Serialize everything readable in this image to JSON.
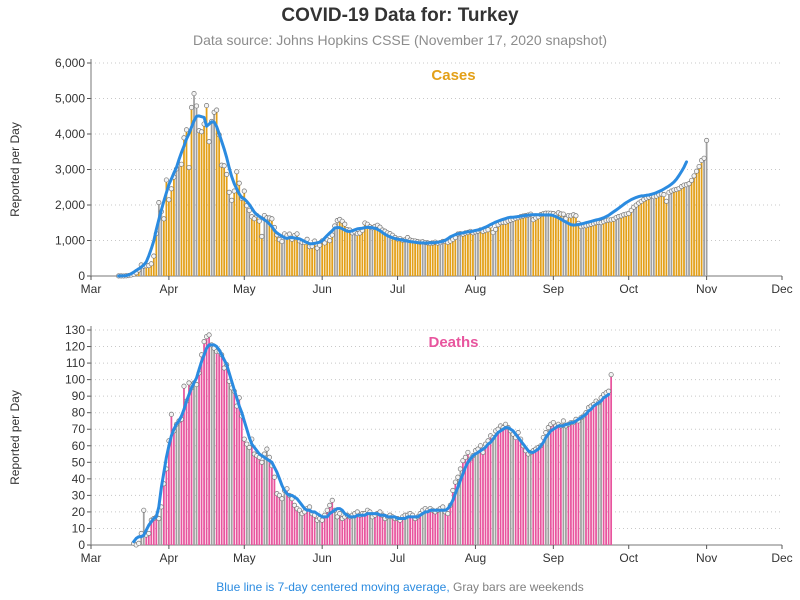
{
  "header": {
    "title": "COVID-19 Data for: Turkey",
    "subtitle": "Data source: Johns Hopkins CSSE (November 17, 2020 snapshot)"
  },
  "footnote": {
    "blue_text": "Blue line is 7-day centered moving average,",
    "gray_text": "Gray bars are weekends"
  },
  "colors": {
    "cases": "#e3a018",
    "deaths": "#e8559e",
    "moving_average": "#2b8be0",
    "weekend": "#a0a0a0",
    "grid": "#c8c8c8"
  },
  "chart_data": [
    {
      "type": "bar",
      "title": "Cases",
      "ylabel": "Reported per Day",
      "xlabel": "",
      "ylim": [
        0,
        6000
      ],
      "yticks": [
        "0",
        "1,000",
        "2,000",
        "3,000",
        "4,000",
        "5,000",
        "6,000"
      ],
      "x_ticks": [
        "Mar",
        "Apr",
        "May",
        "Jun",
        "Jul",
        "Aug",
        "Sep",
        "Oct",
        "Nov",
        "Dec"
      ],
      "x_start": "2020-03-01",
      "grid": true,
      "series": [
        {
          "name": "Cases",
          "x_first": "2020-03-12",
          "values": [
            1,
            1,
            0,
            4,
            12,
            29,
            51,
            93,
            168,
            311,
            277,
            289,
            293,
            343,
            561,
            1196,
            2069,
            1815,
            1610,
            2704,
            2148,
            2456,
            2786,
            3013,
            3135,
            3148,
            3892,
            4117,
            3056,
            4747,
            5138,
            4789,
            4093,
            4062,
            4281,
            4801,
            3783,
            4353,
            4611,
            4674,
            3977,
            3122,
            3104,
            2861,
            2357,
            2131,
            2392,
            2936,
            2615,
            2188,
            2392,
            1983,
            1848,
            1670,
            1614,
            1704,
            1546,
            1114,
            1704,
            1639,
            1635,
            1610,
            1368,
            1158,
            1022,
            972,
            1186,
            1141,
            1182,
            1035,
            1141,
            1186,
            987,
            952,
            948,
            1034,
            827,
            839,
            983,
            786,
            867,
            989,
            930,
            1025,
            995,
            1153,
            1410,
            1562,
            1592,
            1542,
            1459,
            1304,
            1293,
            1214,
            1248,
            1195,
            1212,
            1285,
            1492,
            1458,
            1386,
            1356,
            1396,
            1429,
            1374,
            1293,
            1263,
            1214,
            1192,
            1148,
            1086,
            1041,
            1053,
            1008,
            1016,
            1083,
            1012,
            992,
            985,
            966,
            953,
            963,
            944,
            932,
            919,
            928,
            954,
            926,
            940,
            973,
            976,
            948,
            983,
            1032,
            1083,
            1182,
            1192,
            1178,
            1212,
            1226,
            1256,
            1217,
            1243,
            1263,
            1298,
            1256,
            1285,
            1303,
            1412,
            1226,
            1312,
            1443,
            1502,
            1512,
            1517,
            1549,
            1573,
            1596,
            1627,
            1642,
            1671,
            1688,
            1703,
            1716,
            1742,
            1585,
            1634,
            1670,
            1726,
            1751,
            1768,
            1771,
            1767,
            1759,
            1720,
            1780,
            1747,
            1742,
            1617,
            1701,
            1694,
            1724,
            1696,
            1484,
            1392,
            1412,
            1415,
            1438,
            1457,
            1477,
            1503,
            1510,
            1502,
            1532,
            1563,
            1577,
            1581,
            1599,
            1644,
            1675,
            1693,
            1724,
            1743,
            1762,
            1850,
            1937,
            1997,
            2054,
            2102,
            2153,
            2194,
            2221,
            2262,
            2234,
            2251,
            2289,
            2309,
            2294,
            2104,
            2352,
            2393,
            2422,
            2437,
            2465,
            2520,
            2560,
            2571,
            2601,
            2693,
            2820,
            2952,
            3084,
            3255,
            3316,
            3819
          ]
        },
        {
          "name": "7-day centered moving average",
          "x_first": "2020-03-12",
          "values": [
            1,
            3,
            7,
            12,
            30,
            65,
            106,
            158,
            199,
            253,
            310,
            399,
            568,
            767,
            991,
            1306,
            1587,
            1863,
            2116,
            2347,
            2578,
            2736,
            2904,
            3052,
            3272,
            3481,
            3663,
            3860,
            4012,
            4191,
            4373,
            4500,
            4510,
            4486,
            4468,
            4219,
            4280,
            4344,
            4335,
            4211,
            4011,
            3789,
            3576,
            3332,
            3048,
            2801,
            2603,
            2456,
            2310,
            2203,
            2169,
            2100,
            2016,
            1909,
            1799,
            1728,
            1678,
            1632,
            1580,
            1538,
            1466,
            1392,
            1283,
            1213,
            1163,
            1118,
            1080,
            1059,
            1083,
            1084,
            1071,
            1059,
            1045,
            1010,
            972,
            940,
            909,
            911,
            917,
            935,
            952,
            995,
            1067,
            1143,
            1211,
            1277,
            1353,
            1364,
            1362,
            1332,
            1294,
            1263,
            1256,
            1273,
            1301,
            1328,
            1338,
            1347,
            1362,
            1373,
            1366,
            1360,
            1344,
            1314,
            1275,
            1223,
            1175,
            1136,
            1105,
            1077,
            1053,
            1038,
            1024,
            1011,
            997,
            983,
            970,
            960,
            948,
            940,
            934,
            932,
            929,
            930,
            934,
            938,
            945,
            951,
            961,
            978,
            1005,
            1050,
            1101,
            1136,
            1165,
            1185,
            1201,
            1218,
            1230,
            1245,
            1252,
            1264,
            1282,
            1298,
            1314,
            1347,
            1375,
            1410,
            1448,
            1481,
            1518,
            1546,
            1573,
            1597,
            1620,
            1643,
            1657,
            1655,
            1664,
            1672,
            1684,
            1697,
            1707,
            1714,
            1724,
            1727,
            1729,
            1728,
            1725,
            1722,
            1717,
            1721,
            1717,
            1701,
            1673,
            1640,
            1600,
            1559,
            1520,
            1481,
            1448,
            1434,
            1440,
            1450,
            1464,
            1481,
            1501,
            1519,
            1539,
            1558,
            1578,
            1594,
            1614,
            1640,
            1672,
            1711,
            1760,
            1809,
            1860,
            1911,
            1963,
            2016,
            2067,
            2111,
            2153,
            2183,
            2214,
            2238,
            2255,
            2263,
            2272,
            2283,
            2300,
            2321,
            2349,
            2379,
            2412,
            2451,
            2492,
            2534,
            2585,
            2649,
            2729,
            2830,
            2943,
            3065,
            3214
          ]
        }
      ]
    },
    {
      "type": "bar",
      "title": "Deaths",
      "ylabel": "Reported per Day",
      "xlabel": "",
      "ylim": [
        0,
        130
      ],
      "yticks": [
        "0",
        "10",
        "20",
        "30",
        "40",
        "50",
        "60",
        "70",
        "80",
        "90",
        "100",
        "110",
        "120",
        "130"
      ],
      "x_ticks": [
        "Mar",
        "Apr",
        "May",
        "Jun",
        "Jul",
        "Aug",
        "Sep",
        "Oct",
        "Nov",
        "Dec"
      ],
      "x_start": "2020-03-01",
      "grid": true,
      "series": [
        {
          "name": "Deaths",
          "x_first": "2020-03-18",
          "values": [
            1,
            0,
            1,
            7,
            21,
            6,
            7,
            15,
            16,
            17,
            16,
            23,
            37,
            46,
            63,
            79,
            69,
            73,
            75,
            76,
            96,
            87,
            98,
            95,
            98,
            97,
            104,
            115,
            123,
            126,
            127,
            121,
            119,
            117,
            117,
            115,
            107,
            109,
            99,
            95,
            93,
            84,
            89,
            78,
            64,
            61,
            59,
            64,
            55,
            54,
            53,
            50,
            55,
            58,
            53,
            48,
            41,
            31,
            30,
            28,
            33,
            34,
            30,
            28,
            24,
            22,
            21,
            19,
            20,
            22,
            23,
            19,
            18,
            15,
            16,
            15,
            18,
            21,
            24,
            27,
            21,
            17,
            19,
            16,
            17,
            18,
            17,
            18,
            19,
            20,
            18,
            19,
            19,
            21,
            20,
            17,
            18,
            19,
            20,
            18,
            16,
            17,
            18,
            17,
            16,
            16,
            15,
            17,
            18,
            18,
            19,
            18,
            16,
            17,
            19,
            21,
            22,
            21,
            22,
            21,
            20,
            21,
            22,
            23,
            20,
            19,
            24,
            33,
            38,
            41,
            46,
            51,
            53,
            56,
            52,
            54,
            57,
            58,
            60,
            56,
            61,
            63,
            66,
            65,
            69,
            70,
            72,
            71,
            73,
            71,
            69,
            67,
            65,
            68,
            64,
            60,
            57,
            55,
            56,
            57,
            58,
            59,
            60,
            65,
            68,
            71,
            73,
            74,
            72,
            73,
            72,
            75,
            72,
            73,
            74,
            74,
            76,
            75,
            77,
            78,
            80,
            83,
            84,
            85,
            87,
            86,
            89,
            91,
            92,
            93,
            103
          ]
        },
        {
          "name": "7-day centered moving average",
          "x_first": "2020-03-18",
          "values": [
            2,
            4,
            5,
            5,
            6,
            9,
            12,
            14,
            16,
            17,
            23,
            35,
            44,
            53,
            60,
            66,
            70,
            73,
            75,
            78,
            82,
            87,
            91,
            95,
            98,
            101,
            106,
            111,
            115,
            119,
            121,
            121,
            121,
            120,
            118,
            115,
            112,
            109,
            104,
            99,
            94,
            89,
            84,
            80,
            75,
            70,
            65,
            61,
            59,
            57,
            55,
            54,
            53,
            52,
            51,
            50,
            47,
            44,
            40,
            36,
            33,
            31,
            30,
            30,
            29,
            28,
            26,
            24,
            22,
            21,
            21,
            20,
            20,
            19,
            18,
            17,
            17,
            17,
            19,
            20,
            21,
            22,
            22,
            21,
            19,
            18,
            17,
            17,
            17,
            18,
            18,
            18,
            18,
            19,
            19,
            19,
            19,
            19,
            18,
            18,
            18,
            17,
            17,
            17,
            17,
            16,
            16,
            16,
            16,
            17,
            17,
            17,
            17,
            17,
            18,
            19,
            20,
            20,
            21,
            21,
            21,
            21,
            21,
            21,
            21,
            22,
            24,
            27,
            31,
            35,
            39,
            43,
            47,
            50,
            52,
            54,
            55,
            56,
            57,
            58,
            59,
            61,
            62,
            64,
            66,
            68,
            69,
            70,
            71,
            71,
            70,
            69,
            67,
            65,
            63,
            61,
            59,
            57,
            56,
            56,
            57,
            58,
            60,
            62,
            65,
            67,
            69,
            70,
            71,
            72,
            72,
            72,
            73,
            73,
            74,
            74,
            75,
            76,
            77,
            78,
            79,
            81,
            82,
            84,
            85,
            86,
            87,
            89,
            90,
            91
          ]
        }
      ]
    }
  ]
}
